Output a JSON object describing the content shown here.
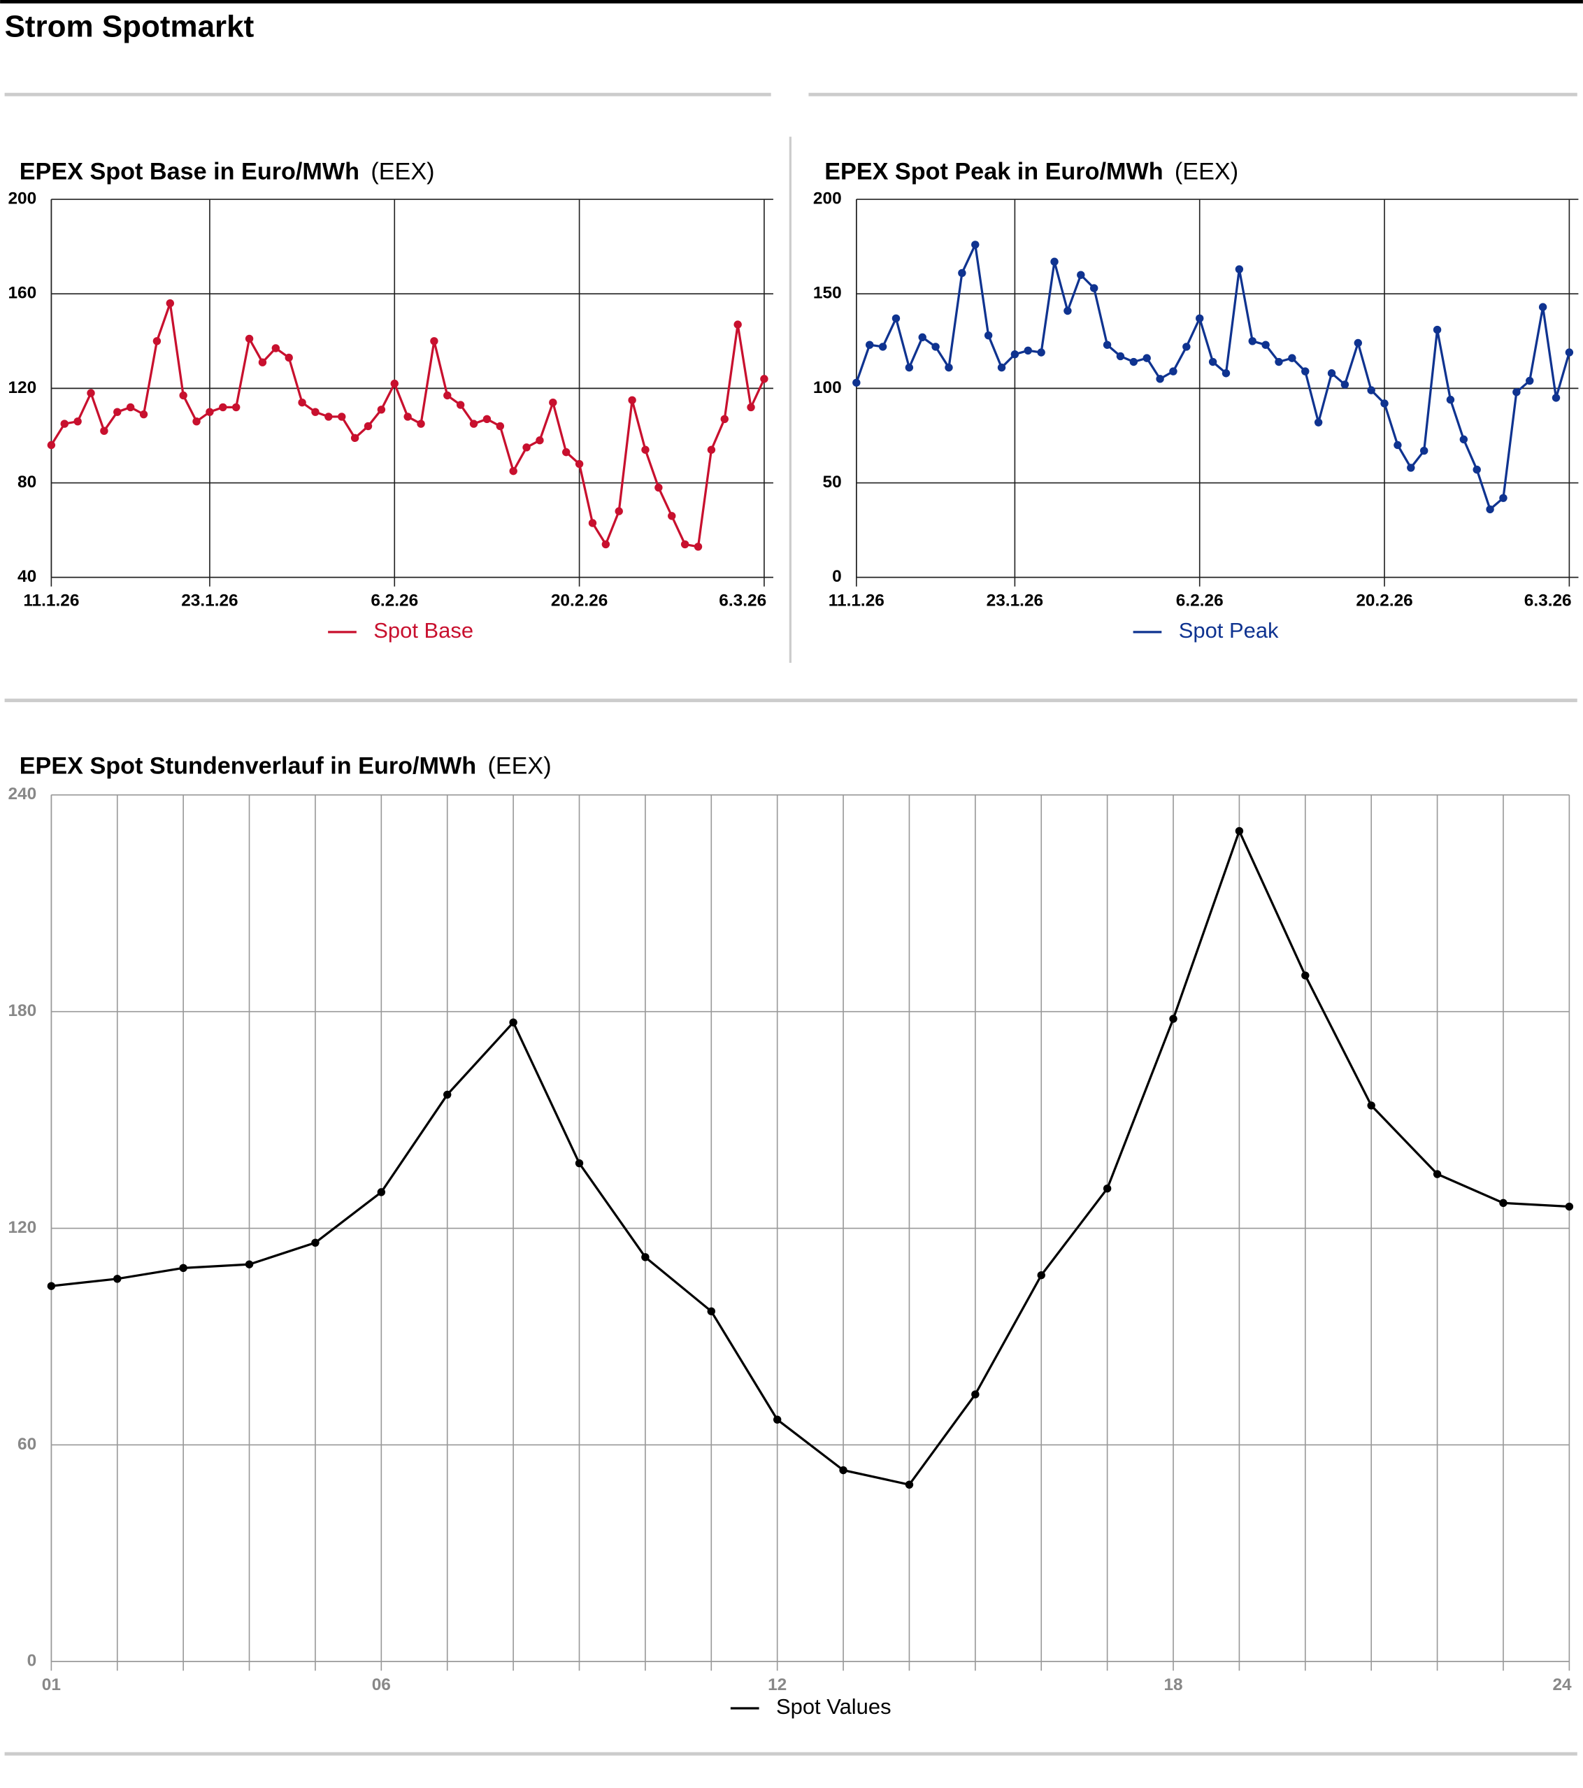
{
  "title": "Strom Spotmarkt",
  "chart_data": [
    {
      "type": "line",
      "title": "EPEX Spot Base in Euro/MWh",
      "source": "(EEX)",
      "categories": [
        "11.1.26",
        null,
        null,
        null,
        null,
        null,
        null,
        null,
        null,
        null,
        null,
        null,
        "23.1.26",
        null,
        null,
        null,
        null,
        null,
        null,
        null,
        null,
        null,
        null,
        null,
        null,
        null,
        "6.2.26",
        null,
        null,
        null,
        null,
        null,
        null,
        null,
        null,
        null,
        null,
        null,
        null,
        null,
        "20.2.26",
        null,
        null,
        null,
        null,
        null,
        null,
        null,
        null,
        null,
        null,
        null,
        null,
        null,
        "6.3.26"
      ],
      "series": [
        {
          "name": "Spot Base",
          "color": "#c8102e",
          "values": [
            96,
            105,
            106,
            118,
            102,
            110,
            112,
            109,
            140,
            156,
            117,
            106,
            110,
            112,
            112,
            141,
            131,
            137,
            133,
            114,
            110,
            108,
            108,
            99,
            104,
            111,
            122,
            108,
            105,
            140,
            117,
            113,
            105,
            107,
            104,
            85,
            95,
            98,
            114,
            93,
            88,
            63,
            54,
            68,
            115,
            94,
            78,
            66,
            54,
            53,
            94,
            107,
            147,
            112,
            124
          ]
        }
      ],
      "ylim": [
        40,
        200
      ],
      "yticks": [
        40,
        80,
        120,
        160,
        200
      ],
      "grid": true,
      "xgrid": "labels"
    },
    {
      "type": "line",
      "title": "EPEX Spot Peak in Euro/MWh",
      "source": "(EEX)",
      "categories": [
        "11.1.26",
        null,
        null,
        null,
        null,
        null,
        null,
        null,
        null,
        null,
        null,
        null,
        "23.1.26",
        null,
        null,
        null,
        null,
        null,
        null,
        null,
        null,
        null,
        null,
        null,
        null,
        null,
        "6.2.26",
        null,
        null,
        null,
        null,
        null,
        null,
        null,
        null,
        null,
        null,
        null,
        null,
        null,
        "20.2.26",
        null,
        null,
        null,
        null,
        null,
        null,
        null,
        null,
        null,
        null,
        null,
        null,
        null,
        "6.3.26"
      ],
      "series": [
        {
          "name": "Spot Peak",
          "color": "#0f3390",
          "values": [
            103,
            123,
            122,
            137,
            111,
            127,
            122,
            111,
            161,
            176,
            128,
            111,
            118,
            120,
            119,
            167,
            141,
            160,
            153,
            123,
            117,
            114,
            116,
            105,
            109,
            122,
            137,
            114,
            108,
            163,
            125,
            123,
            114,
            116,
            109,
            82,
            108,
            102,
            124,
            99,
            92,
            70,
            58,
            67,
            131,
            94,
            73,
            57,
            36,
            42,
            98,
            104,
            143,
            95,
            119
          ]
        }
      ],
      "ylim": [
        0,
        200
      ],
      "yticks": [
        0,
        50,
        100,
        150,
        200
      ],
      "grid": true,
      "xgrid": "labels"
    },
    {
      "type": "line",
      "title": "EPEX Spot Stundenverlauf in Euro/MWh",
      "source": "(EEX)",
      "categories": [
        "01",
        null,
        null,
        null,
        null,
        "06",
        null,
        null,
        null,
        null,
        null,
        "12",
        null,
        null,
        null,
        null,
        null,
        "18",
        null,
        null,
        null,
        null,
        null,
        "24"
      ],
      "series": [
        {
          "name": "Spot Values",
          "color": "#000000",
          "values": [
            104,
            106,
            109,
            110,
            116,
            130,
            157,
            177,
            138,
            112,
            97,
            67,
            53,
            49,
            74,
            107,
            131,
            178,
            230,
            190,
            154,
            135,
            127,
            126
          ]
        }
      ],
      "ylim": [
        0,
        240
      ],
      "yticks": [
        0,
        60,
        120,
        180,
        240
      ],
      "grid": true,
      "xgrid": "all"
    }
  ]
}
